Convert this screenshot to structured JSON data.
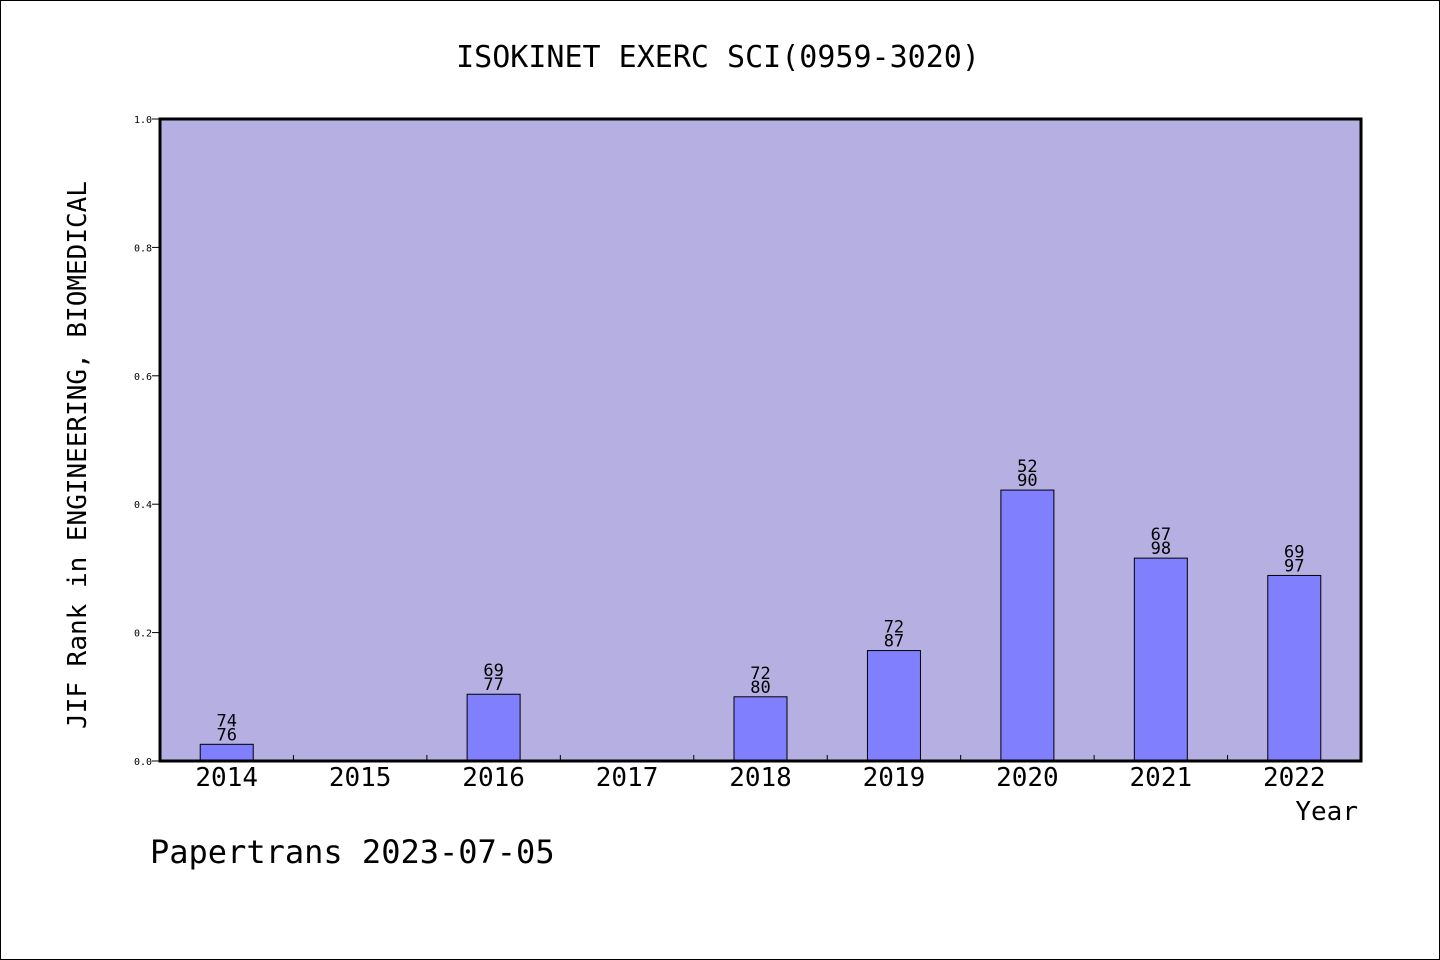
{
  "chart_data": {
    "type": "bar",
    "title": "ISOKINET EXERC SCI(0959-3020)",
    "xlabel": "Year",
    "ylabel": "JIF Rank in ENGINEERING, BIOMEDICAL",
    "ylim": [
      0,
      1.0
    ],
    "yticks": [
      "0.0",
      "0.2",
      "0.4",
      "0.6",
      "0.8",
      "1.0"
    ],
    "categories": [
      "2014",
      "2015",
      "2016",
      "2017",
      "2018",
      "2019",
      "2020",
      "2021",
      "2022"
    ],
    "values": [
      0.026,
      null,
      0.104,
      null,
      0.1,
      0.172,
      0.422,
      0.316,
      0.289
    ],
    "annotations": [
      {
        "rank": "74",
        "total": "76"
      },
      null,
      {
        "rank": "69",
        "total": "77"
      },
      null,
      {
        "rank": "72",
        "total": "80"
      },
      {
        "rank": "72",
        "total": "87"
      },
      {
        "rank": "52",
        "total": "90"
      },
      {
        "rank": "67",
        "total": "98"
      },
      {
        "rank": "69",
        "total": "97"
      }
    ],
    "plot_background": "#b6b0e2",
    "bar_color": "#8080ff",
    "grid": false
  },
  "footer": {
    "credit": "Papertrans 2023-07-05"
  }
}
